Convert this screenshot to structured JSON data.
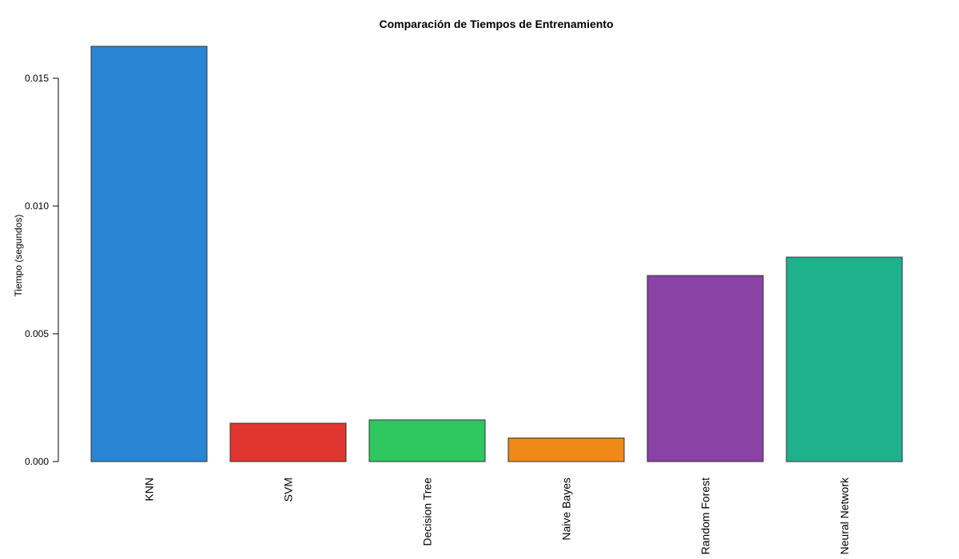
{
  "chart_data": {
    "type": "bar",
    "title": "Comparación de Tiempos de Entrenamiento",
    "xlabel": "",
    "ylabel": "Tiempo (segundos)",
    "categories": [
      "KNN",
      "SVM",
      "Decision Tree",
      "Naive Bayes",
      "Random Forest",
      "Neural Network"
    ],
    "values": [
      0.01625,
      0.0015,
      0.00163,
      0.00092,
      0.00728,
      0.008
    ],
    "colors": [
      "#2a84d4",
      "#e0362f",
      "#2ec760",
      "#ef8a16",
      "#8a42a6",
      "#1fb18c"
    ],
    "ylim": [
      0,
      0.015
    ],
    "yticks": [
      "0.000",
      "0.005",
      "0.010",
      "0.015"
    ],
    "grid": false,
    "legend": "none"
  }
}
